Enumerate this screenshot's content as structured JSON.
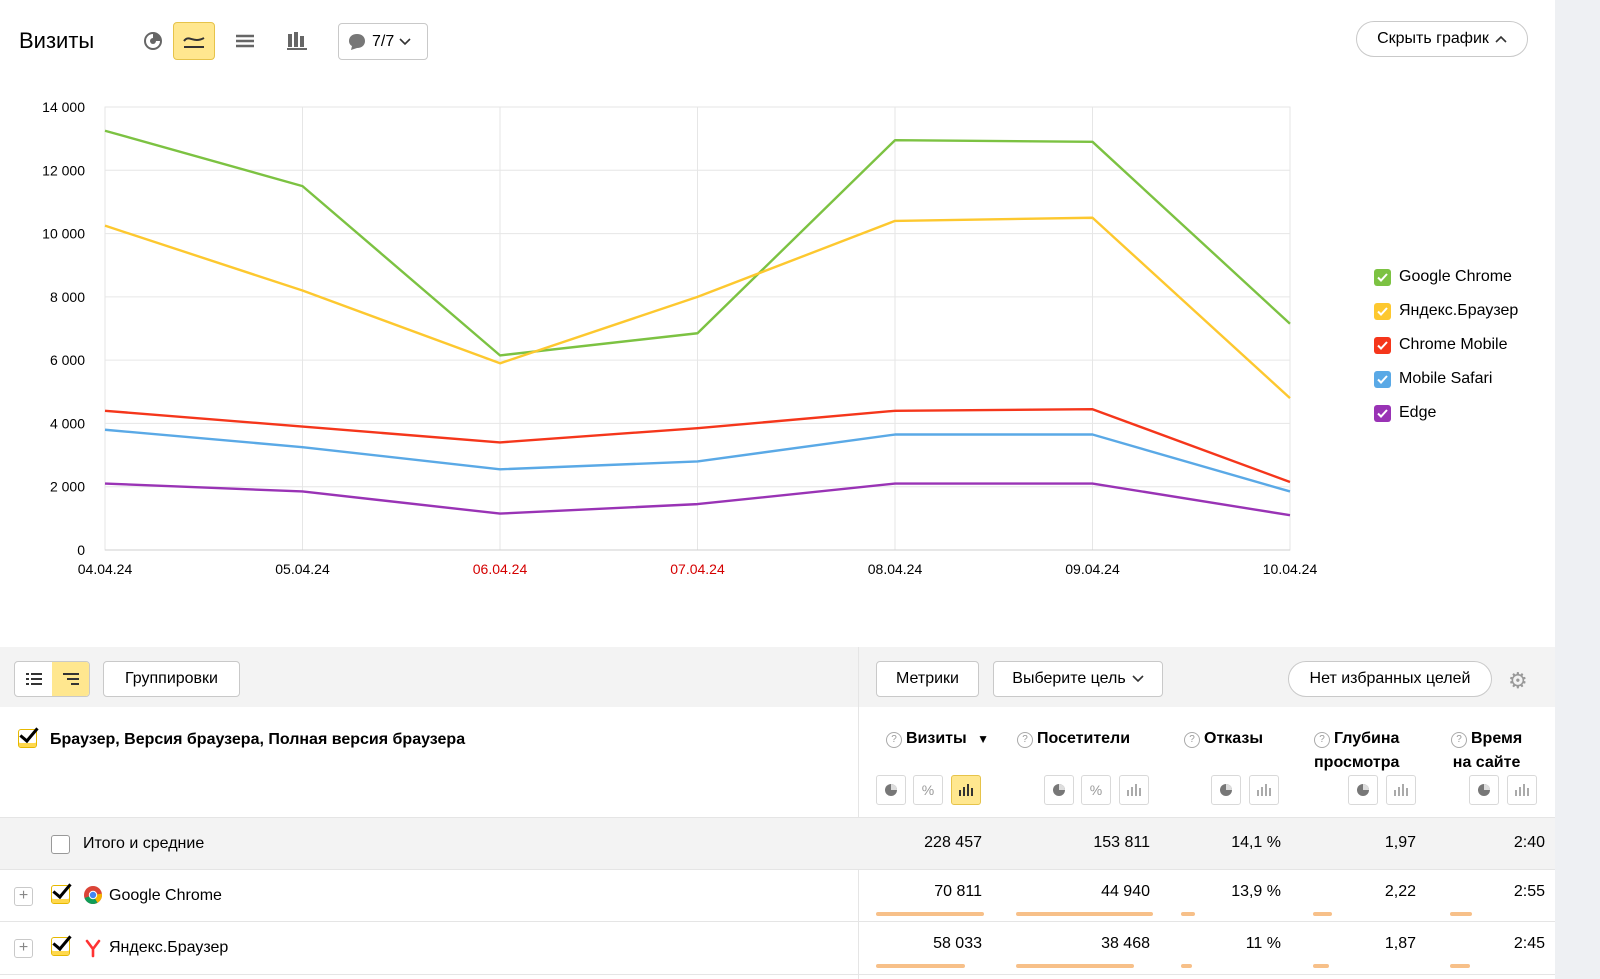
{
  "header": {
    "title": "Визиты",
    "comment_count": "7/7",
    "hide_chart_label": "Скрыть график"
  },
  "chart_data": {
    "type": "line",
    "x": [
      "04.04.24",
      "05.04.24",
      "06.04.24",
      "07.04.24",
      "08.04.24",
      "09.04.24",
      "10.04.24"
    ],
    "x_highlight": [
      false,
      false,
      true,
      true,
      false,
      false,
      false
    ],
    "ylim": [
      0,
      14000
    ],
    "yticks": [
      "0",
      "2 000",
      "4 000",
      "6 000",
      "8 000",
      "10 000",
      "12 000",
      "14 000"
    ],
    "ytick_values": [
      0,
      2000,
      4000,
      6000,
      8000,
      10000,
      12000,
      14000
    ],
    "grid": true,
    "legend_position": "right",
    "series": [
      {
        "name": "Google Chrome",
        "color": "#7cc242",
        "values": [
          13250,
          11500,
          6150,
          6850,
          12950,
          12900,
          7150
        ]
      },
      {
        "name": "Яндекс.Браузер",
        "color": "#fdc82f",
        "values": [
          10250,
          8200,
          5900,
          8000,
          10400,
          10500,
          4800
        ]
      },
      {
        "name": "Chrome Mobile",
        "color": "#f5361b",
        "values": [
          4400,
          3900,
          3400,
          3850,
          4400,
          4450,
          2150
        ]
      },
      {
        "name": "Mobile Safari",
        "color": "#5aa9e6",
        "values": [
          3800,
          3250,
          2550,
          2800,
          3650,
          3650,
          1850
        ]
      },
      {
        "name": "Edge",
        "color": "#9933b5",
        "values": [
          2100,
          1850,
          1150,
          1450,
          2100,
          2100,
          1100
        ]
      }
    ]
  },
  "toolbar": {
    "groupings_label": "Группировки",
    "metrics_label": "Метрики",
    "goal_label": "Выберите цель",
    "favorites_label": "Нет избранных целей"
  },
  "table": {
    "group_title": "Браузер, Версия браузера, Полная версия браузера",
    "columns": [
      {
        "line1": "Визиты",
        "line2": "",
        "sorted": "▼"
      },
      {
        "line1": "Посетители",
        "line2": ""
      },
      {
        "line1": "Отказы",
        "line2": ""
      },
      {
        "line1": "Глубина",
        "line2": "просмотра"
      },
      {
        "line1": "Время",
        "line2": "на сайте"
      }
    ],
    "total": {
      "label": "Итого и средние",
      "values": [
        "228 457",
        "153 811",
        "14,1 %",
        "1,97",
        "2:40"
      ]
    },
    "rows": [
      {
        "label": "Google Chrome",
        "values": [
          "70 811",
          "44 940",
          "13,9 %",
          "2,22",
          "2:55"
        ],
        "bars": [
          1.0,
          1.0,
          0.14,
          0.19,
          0.22
        ]
      },
      {
        "label": "Яндекс.Браузер",
        "values": [
          "58 033",
          "38 468",
          "11 %",
          "1,87",
          "2:45"
        ],
        "bars": [
          0.82,
          0.86,
          0.11,
          0.16,
          0.2
        ]
      }
    ]
  }
}
